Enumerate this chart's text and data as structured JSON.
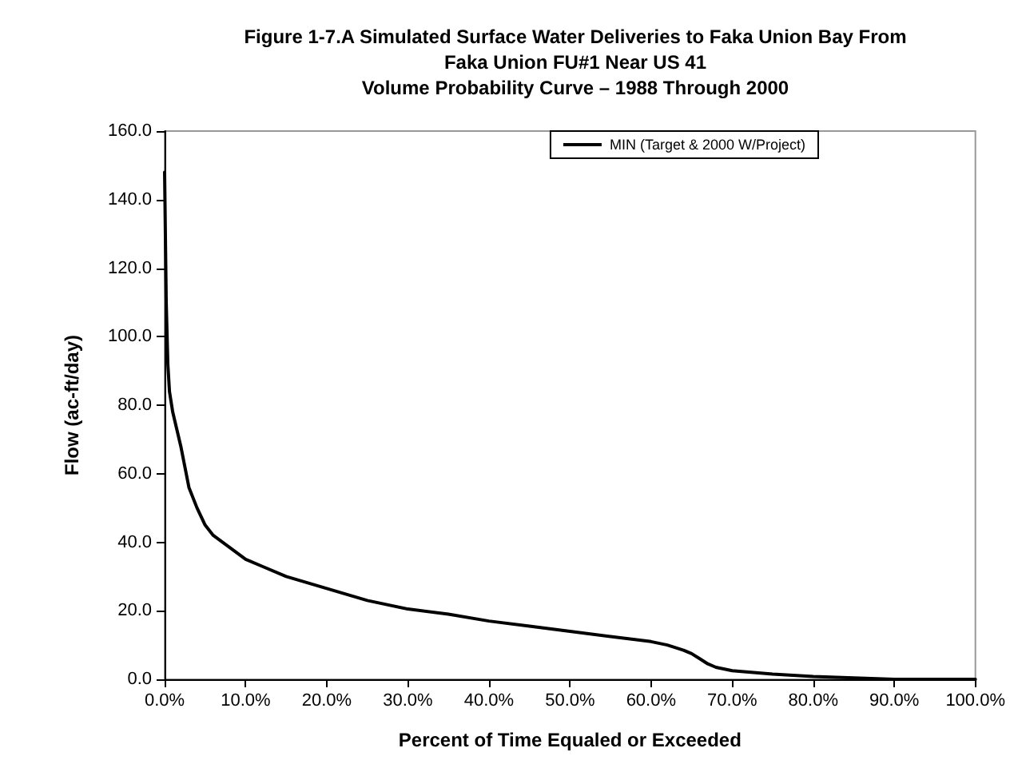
{
  "chart_data": {
    "type": "line",
    "title": "Figure 1-7.A Simulated Surface Water Deliveries to Faka Union Bay From\nFaka Union FU#1 Near US 41\nVolume Probability Curve – 1988 Through 2000",
    "xlabel": "Percent of Time Equaled or Exceeded",
    "ylabel": "Flow (ac-ft/day)",
    "series": [
      {
        "name": "MIN (Target & 2000 W/Project)",
        "color": "#000000",
        "x": [
          0,
          0.2,
          0.4,
          0.6,
          1,
          1.5,
          2,
          2.5,
          3,
          4,
          5,
          6,
          8,
          10,
          12,
          15,
          20,
          25,
          30,
          35,
          40,
          45,
          50,
          55,
          60,
          62,
          64,
          65,
          66,
          67,
          68,
          70,
          75,
          80,
          85,
          90,
          100
        ],
        "values": [
          148,
          110,
          92,
          84,
          78,
          73,
          68,
          62,
          56,
          50,
          45,
          42,
          38.5,
          35,
          33,
          30,
          26.5,
          23,
          20.5,
          19,
          17,
          15.5,
          14,
          12.5,
          11,
          10,
          8.5,
          7.5,
          6,
          4.5,
          3.5,
          2.5,
          1.5,
          0.8,
          0.4,
          0,
          0
        ]
      }
    ],
    "xlim": [
      0,
      100
    ],
    "xticks": [
      {
        "value": 0,
        "label": "0.0%"
      },
      {
        "value": 10,
        "label": "10.0%"
      },
      {
        "value": 20,
        "label": "20.0%"
      },
      {
        "value": 30,
        "label": "30.0%"
      },
      {
        "value": 40,
        "label": "40.0%"
      },
      {
        "value": 50,
        "label": "50.0%"
      },
      {
        "value": 60,
        "label": "60.0%"
      },
      {
        "value": 70,
        "label": "70.0%"
      },
      {
        "value": 80,
        "label": "80.0%"
      },
      {
        "value": 90,
        "label": "90.0%"
      },
      {
        "value": 100,
        "label": "100.0%"
      }
    ],
    "ylim": [
      0,
      160
    ],
    "yticks": [
      {
        "value": 0,
        "label": "0.0"
      },
      {
        "value": 20,
        "label": "20.0"
      },
      {
        "value": 40,
        "label": "40.0"
      },
      {
        "value": 60,
        "label": "60.0"
      },
      {
        "value": 80,
        "label": "80.0"
      },
      {
        "value": 100,
        "label": "100.0"
      },
      {
        "value": 120,
        "label": "120.0"
      },
      {
        "value": 140,
        "label": "140.0"
      },
      {
        "value": 160,
        "label": "160.0"
      }
    ],
    "grid": false,
    "legend": "top right",
    "marker": "none",
    "line_style": "solid"
  }
}
